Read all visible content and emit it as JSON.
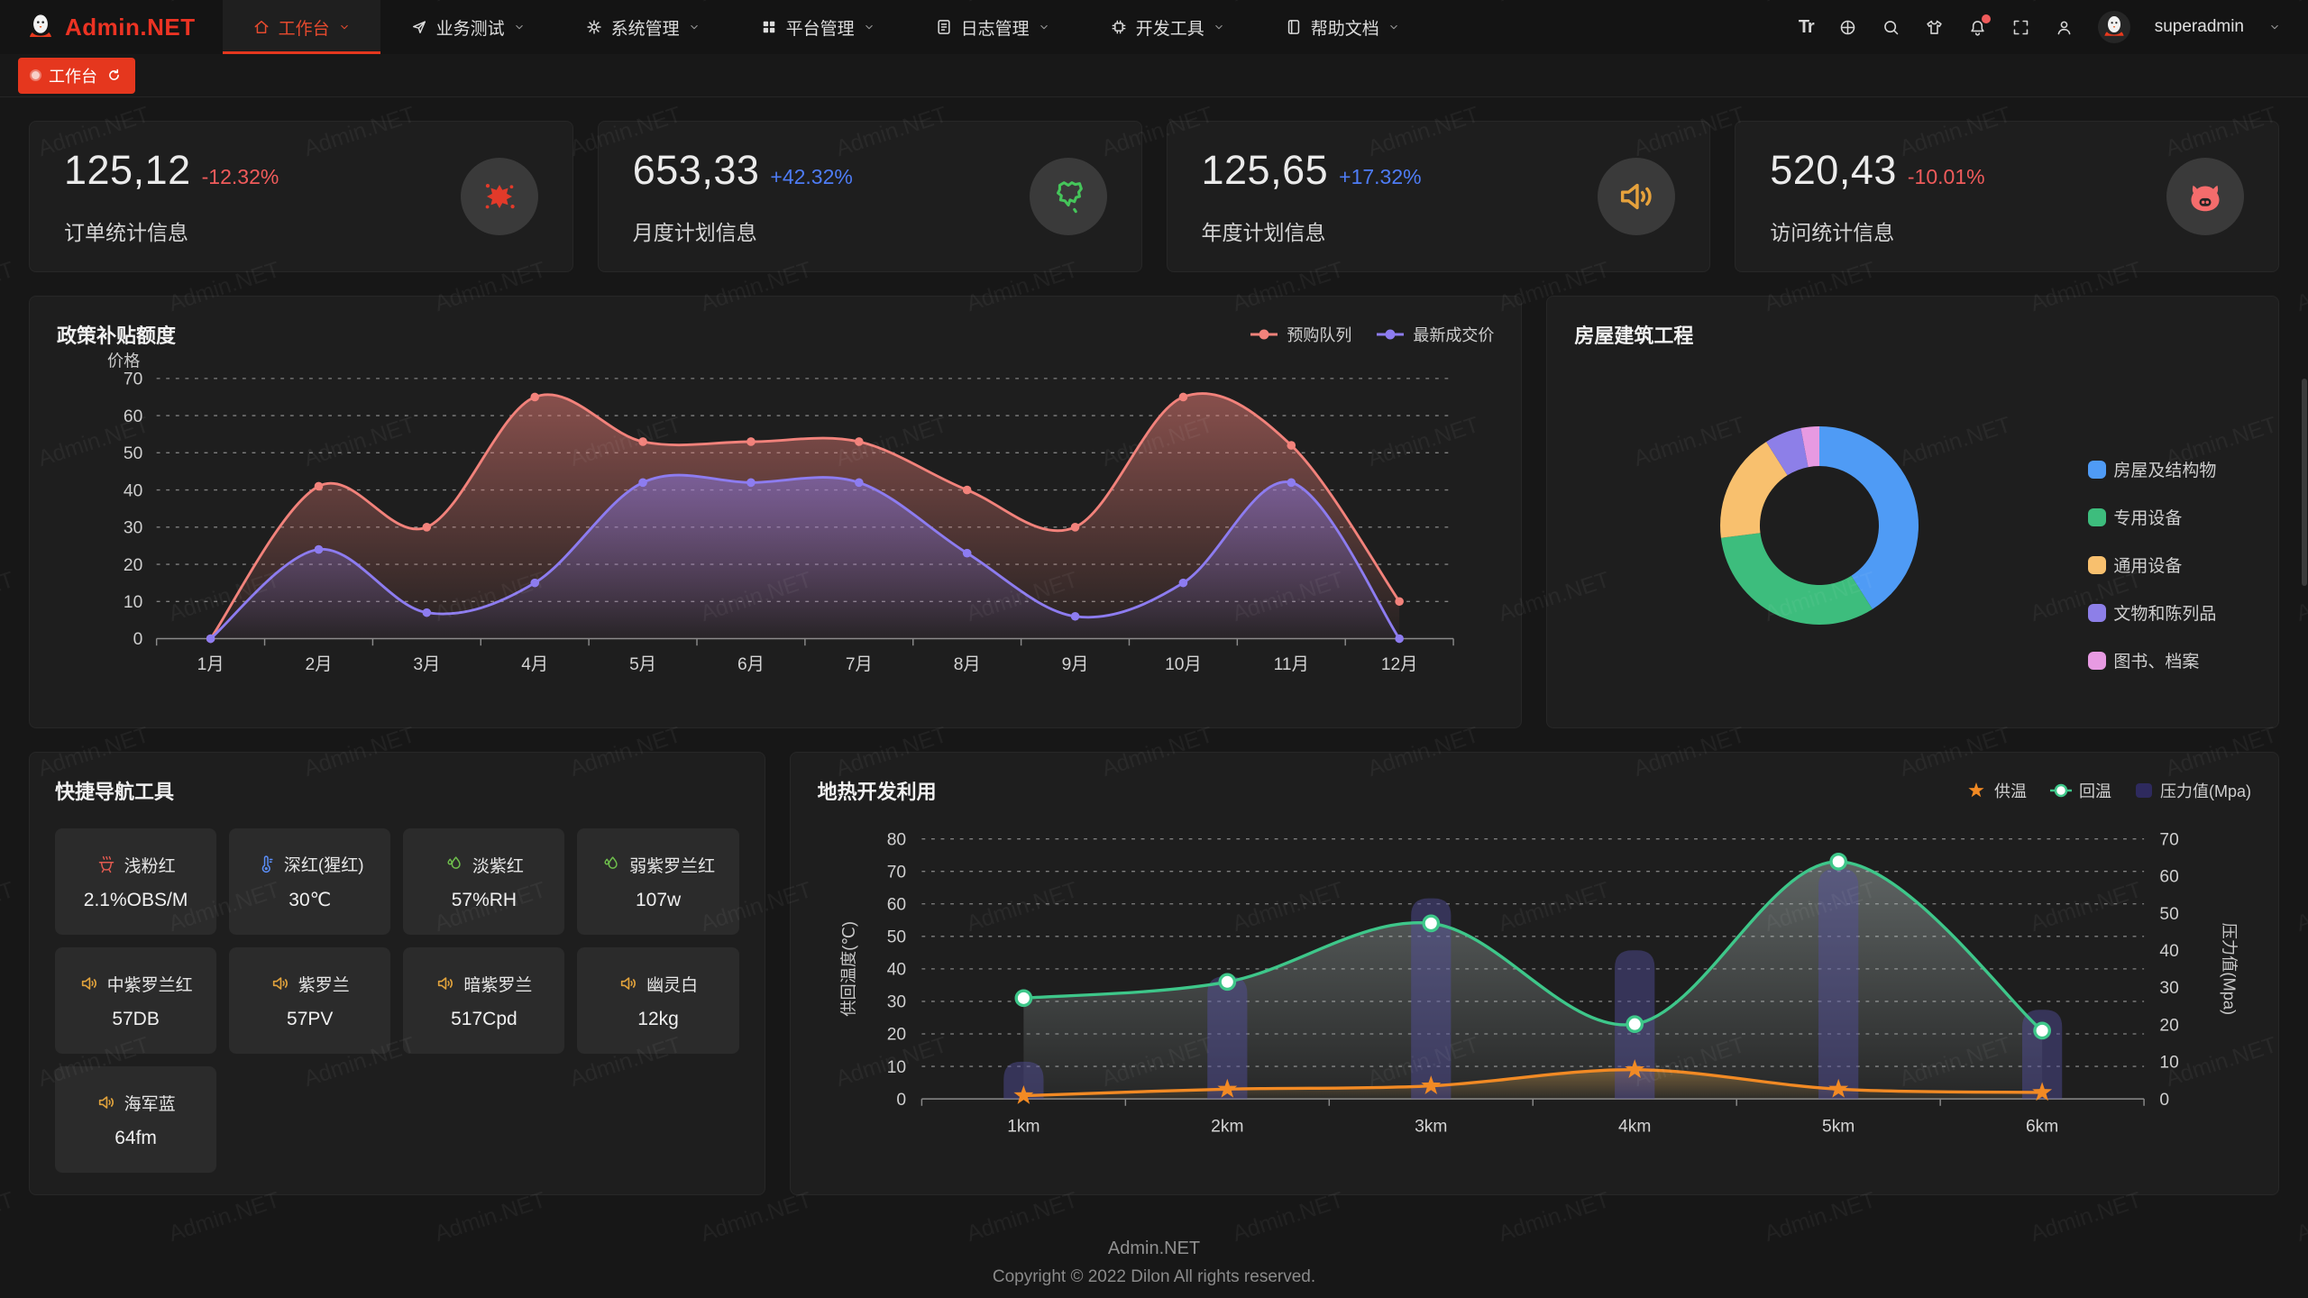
{
  "watermark": "Admin.NET",
  "brand": {
    "name": "Admin.NET"
  },
  "navbar": {
    "menu": [
      {
        "label": "工作台",
        "icon": "home-icon",
        "active": true
      },
      {
        "label": "业务测试",
        "icon": "send-icon",
        "active": false
      },
      {
        "label": "系统管理",
        "icon": "gear-icon",
        "active": false
      },
      {
        "label": "平台管理",
        "icon": "grid-icon",
        "active": false
      },
      {
        "label": "日志管理",
        "icon": "log-icon",
        "active": false
      },
      {
        "label": "开发工具",
        "icon": "chip-icon",
        "active": false
      },
      {
        "label": "帮助文档",
        "icon": "book-icon",
        "active": false
      }
    ],
    "actions": [
      "font-size-icon",
      "language-icon",
      "search-icon",
      "theme-icon",
      "notification-bell-icon",
      "fullscreen-icon",
      "user-icon"
    ],
    "user": "superadmin"
  },
  "tabbar": {
    "active_tab": "工作台"
  },
  "stats": [
    {
      "value": "125,12",
      "delta": "-12.32%",
      "trend": "down",
      "label": "订单统计信息",
      "icon": "splash-icon",
      "icon_color": "#e23a2a"
    },
    {
      "value": "653,33",
      "delta": "+42.32%",
      "trend": "up",
      "label": "月度计划信息",
      "icon": "china-map-icon",
      "icon_color": "#45c55a"
    },
    {
      "value": "125,65",
      "delta": "+17.32%",
      "trend": "up",
      "label": "年度计划信息",
      "icon": "speaker-icon",
      "icon_color": "#e6a23c"
    },
    {
      "value": "520,43",
      "delta": "-10.01%",
      "trend": "down",
      "label": "访问统计信息",
      "icon": "pig-icon",
      "icon_color": "#f56c6c"
    }
  ],
  "chart_data": [
    {
      "type": "line",
      "title": "政策补贴额度",
      "axis_name": "价格",
      "categories": [
        "1月",
        "2月",
        "3月",
        "4月",
        "5月",
        "6月",
        "7月",
        "8月",
        "9月",
        "10月",
        "11月",
        "12月"
      ],
      "series": [
        {
          "name": "预购队列",
          "color": "#f2827b",
          "values": [
            0,
            41,
            30,
            65,
            53,
            53,
            53,
            40,
            30,
            65,
            52,
            10
          ]
        },
        {
          "name": "最新成交价",
          "color": "#8d7cf0",
          "values": [
            0,
            24,
            7,
            15,
            42,
            42,
            42,
            23,
            6,
            15,
            42,
            0
          ]
        }
      ],
      "ylim": [
        0,
        70
      ],
      "ytick_step": 10,
      "grid": true,
      "smooth": true,
      "legend_position": "top-right"
    },
    {
      "type": "pie",
      "title": "房屋建筑工程",
      "donut": true,
      "labels": [
        "房屋及结构物",
        "专用设备",
        "通用设备",
        "文物和陈列品",
        "图书、档案"
      ],
      "values": [
        41,
        32,
        18,
        6,
        3
      ],
      "colors": [
        "#4f9bf5",
        "#3dbd7d",
        "#f8c06e",
        "#8d7fe8",
        "#e79ae2"
      ],
      "legend_position": "right"
    },
    {
      "type": "line+bar",
      "title": "地热开发利用",
      "categories": [
        "1km",
        "2km",
        "3km",
        "4km",
        "5km",
        "6km"
      ],
      "ylabel_left": "供回温度(℃)",
      "ylabel_right": "压力值(Mpa)",
      "ylim_left": [
        0,
        80
      ],
      "ylim_right": [
        0,
        70
      ],
      "smooth": true,
      "series": [
        {
          "name": "供温",
          "kind": "line",
          "axis": "left",
          "marker": "star",
          "color": "#f28a24",
          "values": [
            1,
            3,
            4,
            9,
            3,
            2
          ]
        },
        {
          "name": "回温",
          "kind": "line",
          "axis": "left",
          "marker": "circle",
          "color": "#3ec78a",
          "values": [
            31,
            36,
            54,
            23,
            73,
            21
          ]
        },
        {
          "name": "压力值(Mpa)",
          "kind": "bar",
          "axis": "right",
          "marker": "square",
          "color": "#554fa0",
          "values": [
            10,
            33,
            54,
            40,
            62,
            24
          ]
        }
      ]
    }
  ],
  "quick_nav": {
    "title": "快捷导航工具",
    "items": [
      {
        "label": "浅粉红",
        "value": "2.1%OBS/M",
        "icon": "brazier-icon",
        "icon_color": "#e25a50"
      },
      {
        "label": "深红(猩红)",
        "value": "30℃",
        "icon": "thermometer-icon",
        "icon_color": "#5b8ff9"
      },
      {
        "label": "淡紫红",
        "value": "57%RH",
        "icon": "droplet-icon",
        "icon_color": "#6fbf4c"
      },
      {
        "label": "弱紫罗兰红",
        "value": "107w",
        "icon": "droplet-icon",
        "icon_color": "#6fbf4c"
      },
      {
        "label": "中紫罗兰红",
        "value": "57DB",
        "icon": "speaker-icon",
        "icon_color": "#e0a23c"
      },
      {
        "label": "紫罗兰",
        "value": "57PV",
        "icon": "speaker-icon",
        "icon_color": "#e0a23c"
      },
      {
        "label": "暗紫罗兰",
        "value": "517Cpd",
        "icon": "speaker-icon",
        "icon_color": "#e0a23c"
      },
      {
        "label": "幽灵白",
        "value": "12kg",
        "icon": "speaker-icon",
        "icon_color": "#e0a23c"
      },
      {
        "label": "海军蓝",
        "value": "64fm",
        "icon": "speaker-icon",
        "icon_color": "#e0a23c"
      }
    ]
  },
  "footer": {
    "line1": "Admin.NET",
    "line2": "Copyright © 2022 Dilon All rights reserved."
  }
}
